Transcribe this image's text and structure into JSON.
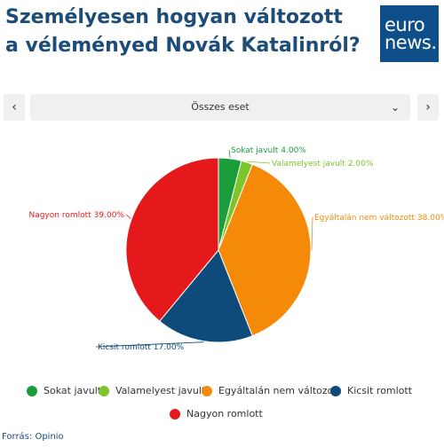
{
  "header": {
    "title": "Személyesen hogyan változott a véleményed Novák Katalinról?",
    "logo": [
      "euro",
      "news."
    ]
  },
  "controls": {
    "filter": "Összes eset"
  },
  "chart_data": {
    "type": "pie",
    "categories": [
      "Sokat javult",
      "Valamelyest javult",
      "Egyáltalán nem változott",
      "Kicsit romlott",
      "Nagyon romlott"
    ],
    "values": [
      4,
      2,
      38,
      17,
      39
    ],
    "value_labels": [
      "4.00%",
      "2.00%",
      "38.00%",
      "17.00%",
      "39.00%"
    ],
    "colors": [
      "#1a9e3a",
      "#7cc52b",
      "#f58a08",
      "#0e4b7a",
      "#e5191b"
    ],
    "legend": "bottom"
  },
  "footer": {
    "source": "Forrás: Opinio"
  }
}
